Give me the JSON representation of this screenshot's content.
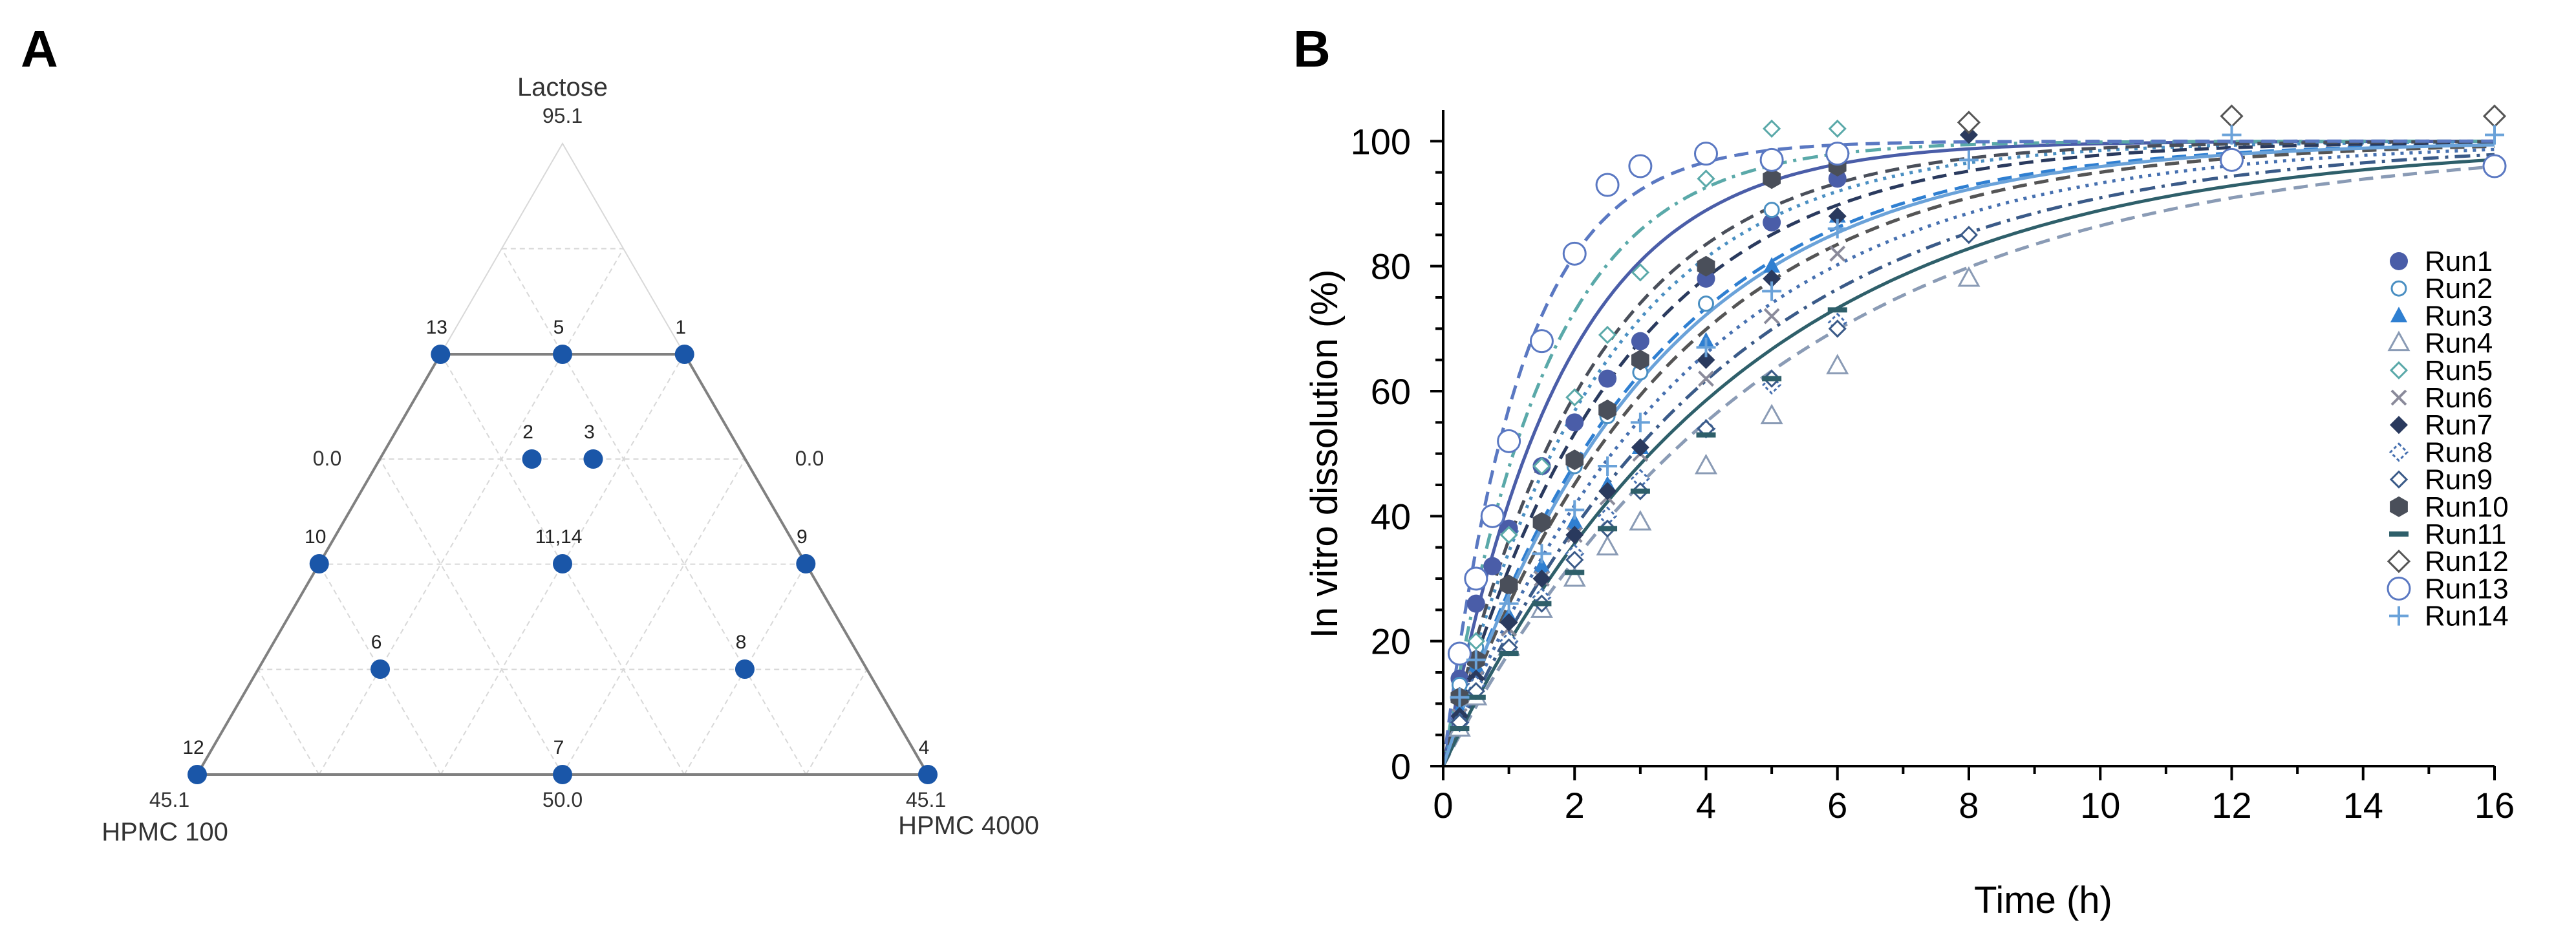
{
  "colors": {
    "run1": "#4a5da8",
    "run2": "#4a8fc2",
    "run3": "#2f7fd1",
    "run4": "#8a9bb5",
    "run5": "#5aa9a9",
    "run6": "#8a8a9a",
    "run7": "#2a3a5e",
    "run8": "#4670b0",
    "run9": "#3a5a88",
    "run10": "#4a4f5a",
    "run11": "#2e5f6a",
    "run12": "#555555",
    "run13": "#5a78c2",
    "run14": "#6aa2d9",
    "ternary_point": "#1a56a8",
    "ternary_edge": "#808080",
    "ternary_grid": "#d8d8d8"
  },
  "panel_a": {
    "label": "A",
    "vertices": {
      "top": {
        "name": "Lactose",
        "value": "95.1"
      },
      "left": {
        "name": "HPMC 100",
        "value": "45.1"
      },
      "right": {
        "name": "HPMC 4000",
        "value": "45.1"
      }
    },
    "edge_labels": {
      "left": "0.0",
      "right": "0.0",
      "bottom": "50.0"
    },
    "points": [
      {
        "label": "13"
      },
      {
        "label": "5"
      },
      {
        "label": "1"
      },
      {
        "label": "2"
      },
      {
        "label": "3"
      },
      {
        "label": "10"
      },
      {
        "label": "11,14"
      },
      {
        "label": "9"
      },
      {
        "label": "6"
      },
      {
        "label": "8"
      },
      {
        "label": "12"
      },
      {
        "label": "7"
      },
      {
        "label": "4"
      }
    ]
  },
  "chart_data": [
    {
      "type": "ternary",
      "title": "",
      "components": [
        "Lactose",
        "HPMC 100",
        "HPMC 4000"
      ],
      "points": [
        {
          "label": "13",
          "lactose": 0.666,
          "hpmc100": 0.334,
          "hpmc4000": 0.0
        },
        {
          "label": "5",
          "lactose": 0.666,
          "hpmc100": 0.167,
          "hpmc4000": 0.167
        },
        {
          "label": "1",
          "lactose": 0.666,
          "hpmc100": 0.0,
          "hpmc4000": 0.334
        },
        {
          "label": "2",
          "lactose": 0.5,
          "hpmc100": 0.292,
          "hpmc4000": 0.208
        },
        {
          "label": "3",
          "lactose": 0.5,
          "hpmc100": 0.208,
          "hpmc4000": 0.292
        },
        {
          "label": "10",
          "lactose": 0.334,
          "hpmc100": 0.666,
          "hpmc4000": 0.0
        },
        {
          "label": "11,14",
          "lactose": 0.334,
          "hpmc100": 0.333,
          "hpmc4000": 0.333
        },
        {
          "label": "9",
          "lactose": 0.334,
          "hpmc100": 0.0,
          "hpmc4000": 0.666
        },
        {
          "label": "6",
          "lactose": 0.167,
          "hpmc100": 0.666,
          "hpmc4000": 0.167
        },
        {
          "label": "8",
          "lactose": 0.167,
          "hpmc100": 0.167,
          "hpmc4000": 0.666
        },
        {
          "label": "12",
          "lactose": 0.0,
          "hpmc100": 1.0,
          "hpmc4000": 0.0
        },
        {
          "label": "7",
          "lactose": 0.0,
          "hpmc100": 0.5,
          "hpmc4000": 0.5
        },
        {
          "label": "4",
          "lactose": 0.0,
          "hpmc100": 0.0,
          "hpmc4000": 1.0
        }
      ]
    },
    {
      "type": "scatter",
      "title": "",
      "panel_label": "B",
      "xlabel": "Time (h)",
      "ylabel": "In vitro dissolution (%)",
      "xlim": [
        0,
        16
      ],
      "ylim": [
        0,
        105
      ],
      "xticks": [
        "0",
        "2",
        "4",
        "6",
        "8",
        "10",
        "12",
        "14",
        "16"
      ],
      "yticks": [
        "0",
        "20",
        "40",
        "60",
        "80",
        "100"
      ],
      "legend_position": "right",
      "series": [
        {
          "name": "Run1",
          "marker": "circle-filled",
          "line": "solid",
          "k": 0.55,
          "x": [
            0.25,
            0.5,
            0.75,
            1,
            1.5,
            2,
            2.5,
            3,
            4,
            5,
            6
          ],
          "y": [
            14,
            26,
            32,
            38,
            48,
            55,
            62,
            68,
            78,
            87,
            94
          ]
        },
        {
          "name": "Run2",
          "marker": "circle-open-small",
          "line": "dotted",
          "k": 0.42,
          "x": [
            0.25,
            0.5,
            1,
            1.5,
            2,
            2.5,
            3,
            4,
            5,
            6
          ],
          "y": [
            13,
            19,
            29,
            39,
            48,
            56,
            63,
            74,
            89,
            97
          ]
        },
        {
          "name": "Run3",
          "marker": "triangle-filled",
          "line": "dashed",
          "k": 0.33,
          "x": [
            0.25,
            0.5,
            1,
            1.5,
            2,
            2.5,
            3,
            4,
            5,
            6
          ],
          "y": [
            9,
            16,
            24,
            32,
            39,
            45,
            51,
            68,
            80,
            88
          ]
        },
        {
          "name": "Run4",
          "marker": "triangle-open",
          "line": "dashed",
          "k": 0.2,
          "x": [
            0.25,
            0.5,
            1,
            1.5,
            2,
            2.5,
            3,
            4,
            5,
            6,
            8
          ],
          "y": [
            6,
            11,
            19,
            25,
            30,
            35,
            39,
            48,
            56,
            64,
            78
          ]
        },
        {
          "name": "Run5",
          "marker": "diamond-open-small",
          "line": "dashdot",
          "k": 0.65,
          "x": [
            0.5,
            1,
            1.5,
            2,
            2.5,
            3,
            4,
            5,
            6,
            8
          ],
          "y": [
            20,
            37,
            48,
            59,
            69,
            79,
            94,
            102,
            102,
            101
          ]
        },
        {
          "name": "Run6",
          "marker": "x",
          "line": "dashed",
          "k": 0.3,
          "x": [
            0.25,
            0.5,
            1,
            1.5,
            2,
            2.5,
            3,
            4,
            5,
            6
          ],
          "y": [
            8,
            14,
            22,
            30,
            37,
            43,
            50,
            62,
            72,
            82
          ]
        },
        {
          "name": "Run7",
          "marker": "diamond-filled",
          "line": "dashed",
          "k": 0.38,
          "x": [
            0.25,
            0.5,
            1,
            1.5,
            2,
            2.5,
            3,
            4,
            5,
            6,
            8
          ],
          "y": [
            8,
            14,
            23,
            30,
            37,
            44,
            51,
            65,
            78,
            88,
            101
          ]
        },
        {
          "name": "Run8",
          "marker": "diamond-open-dashed",
          "line": "dotted",
          "k": 0.27,
          "x": [
            0.25,
            0.5,
            1,
            1.5,
            2,
            2.5,
            3,
            4,
            5,
            6
          ],
          "y": [
            7,
            13,
            20,
            27,
            34,
            40,
            46,
            54,
            61,
            71
          ]
        },
        {
          "name": "Run9",
          "marker": "diamond-open",
          "line": "dashdot",
          "k": 0.24,
          "x": [
            0.25,
            0.5,
            1,
            1.5,
            2,
            2.5,
            3,
            4,
            5,
            6,
            8
          ],
          "y": [
            7,
            12,
            19,
            26,
            33,
            38,
            44,
            54,
            62,
            70,
            85
          ]
        },
        {
          "name": "Run10",
          "marker": "hexagon-filled",
          "line": "dashed",
          "k": 0.45,
          "x": [
            0.25,
            0.5,
            1,
            1.5,
            2,
            2.5,
            3,
            4,
            5,
            6
          ],
          "y": [
            11,
            17,
            29,
            39,
            49,
            57,
            65,
            80,
            94,
            96
          ]
        },
        {
          "name": "Run11",
          "marker": "dash",
          "line": "solid",
          "k": 0.22,
          "x": [
            0.25,
            0.5,
            1,
            1.5,
            2,
            2.5,
            3,
            4,
            5,
            6
          ],
          "y": [
            6,
            11,
            18,
            26,
            31,
            38,
            44,
            53,
            62,
            73
          ]
        },
        {
          "name": "Run12",
          "marker": "diamond-open-large",
          "line": "dashed",
          "k": 0.3,
          "x": [
            8,
            12,
            16
          ],
          "y": [
            103,
            104,
            104
          ]
        },
        {
          "name": "Run13",
          "marker": "circle-open-large",
          "line": "dashed",
          "k": 0.85,
          "x": [
            0.25,
            0.5,
            0.75,
            1,
            1.5,
            2,
            2.5,
            3,
            4,
            5,
            6,
            12,
            16
          ],
          "y": [
            18,
            30,
            40,
            52,
            68,
            82,
            93,
            96,
            98,
            97,
            98,
            97,
            96
          ]
        },
        {
          "name": "Run14",
          "marker": "plus",
          "line": "solid",
          "k": 0.32,
          "x": [
            0.25,
            0.5,
            1,
            1.5,
            2,
            2.5,
            3,
            4,
            5,
            6,
            8,
            12,
            16
          ],
          "y": [
            11,
            17,
            26,
            34,
            41,
            48,
            55,
            67,
            76,
            86,
            97,
            101,
            101
          ]
        }
      ]
    }
  ]
}
